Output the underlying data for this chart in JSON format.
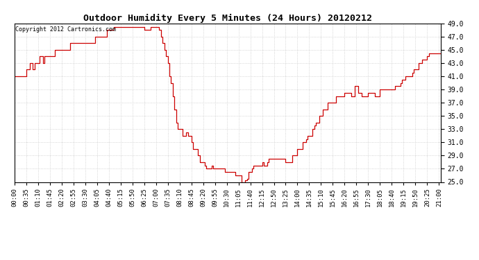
{
  "title": "Outdoor Humidity Every 5 Minutes (24 Hours) 20120212",
  "copyright_text": "Copyright 2012 Cartronics.com",
  "line_color": "#cc0000",
  "bg_color": "#ffffff",
  "plot_bg_color": "#ffffff",
  "grid_color": "#c8c8c8",
  "ylim": [
    25.0,
    49.0
  ],
  "yticks": [
    25.0,
    27.0,
    29.0,
    31.0,
    33.0,
    35.0,
    37.0,
    39.0,
    41.0,
    43.0,
    45.0,
    47.0,
    49.0
  ],
  "tick_step": 7,
  "humidity_values": [
    41.0,
    41.0,
    41.0,
    41.0,
    41.0,
    41.0,
    41.0,
    42.0,
    42.0,
    43.0,
    43.0,
    42.0,
    43.0,
    43.0,
    43.0,
    44.0,
    44.0,
    43.0,
    44.0,
    44.0,
    44.0,
    44.0,
    44.0,
    44.0,
    45.0,
    45.0,
    45.0,
    45.0,
    45.0,
    45.0,
    45.0,
    45.0,
    45.0,
    46.0,
    46.0,
    46.0,
    46.0,
    46.0,
    46.0,
    46.0,
    46.0,
    46.0,
    46.0,
    46.0,
    46.0,
    46.0,
    46.0,
    46.0,
    47.0,
    47.0,
    47.0,
    47.0,
    47.0,
    47.0,
    47.0,
    48.0,
    48.0,
    48.0,
    48.0,
    48.5,
    48.5,
    48.5,
    48.5,
    48.5,
    48.5,
    48.5,
    48.5,
    48.5,
    48.5,
    48.5,
    48.5,
    48.5,
    48.5,
    48.5,
    48.5,
    48.5,
    48.5,
    48.0,
    48.0,
    48.0,
    48.0,
    48.5,
    48.5,
    48.5,
    48.5,
    48.5,
    48.0,
    47.0,
    46.0,
    45.0,
    44.0,
    43.0,
    41.0,
    40.0,
    38.0,
    36.0,
    34.0,
    33.0,
    33.0,
    33.0,
    32.0,
    32.0,
    32.5,
    32.0,
    32.0,
    31.0,
    30.0,
    30.0,
    30.0,
    29.0,
    28.0,
    28.0,
    28.0,
    27.5,
    27.0,
    27.0,
    27.0,
    27.5,
    27.0,
    27.0,
    27.0,
    27.0,
    27.0,
    27.0,
    27.0,
    26.5,
    26.5,
    26.5,
    26.5,
    26.5,
    26.5,
    26.0,
    26.0,
    26.0,
    26.0,
    25.0,
    25.0,
    25.3,
    25.5,
    26.5,
    26.5,
    27.0,
    27.5,
    27.5,
    27.5,
    27.5,
    27.5,
    28.0,
    27.5,
    27.5,
    28.0,
    28.5,
    28.5,
    28.5,
    28.5,
    28.5,
    28.5,
    28.5,
    28.5,
    28.5,
    28.5,
    28.0,
    28.0,
    28.0,
    28.0,
    29.0,
    29.0,
    29.0,
    30.0,
    30.0,
    30.0,
    31.0,
    31.0,
    31.5,
    32.0,
    32.0,
    32.0,
    33.0,
    33.5,
    34.0,
    34.0,
    35.0,
    35.0,
    36.0,
    36.0,
    36.0,
    37.0,
    37.0,
    37.0,
    37.0,
    37.0,
    38.0,
    38.0,
    38.0,
    38.0,
    38.0,
    38.5,
    38.5,
    38.5,
    38.5,
    38.0,
    38.0,
    39.5,
    39.5,
    38.5,
    38.5,
    38.0,
    38.0,
    38.0,
    38.0,
    38.5,
    38.5,
    38.5,
    38.5,
    38.0,
    38.0,
    38.0,
    39.0,
    39.0,
    39.0,
    39.0,
    39.0,
    39.0,
    39.0,
    39.0,
    39.0,
    39.5,
    39.5,
    39.5,
    40.0,
    40.5,
    40.5,
    41.0,
    41.0,
    41.0,
    41.0,
    41.5,
    42.0,
    42.0,
    42.0,
    43.0,
    43.0,
    43.5,
    43.5,
    43.5,
    44.0,
    44.5,
    44.5,
    44.5,
    44.5,
    44.5,
    44.5,
    44.5,
    44.5
  ]
}
